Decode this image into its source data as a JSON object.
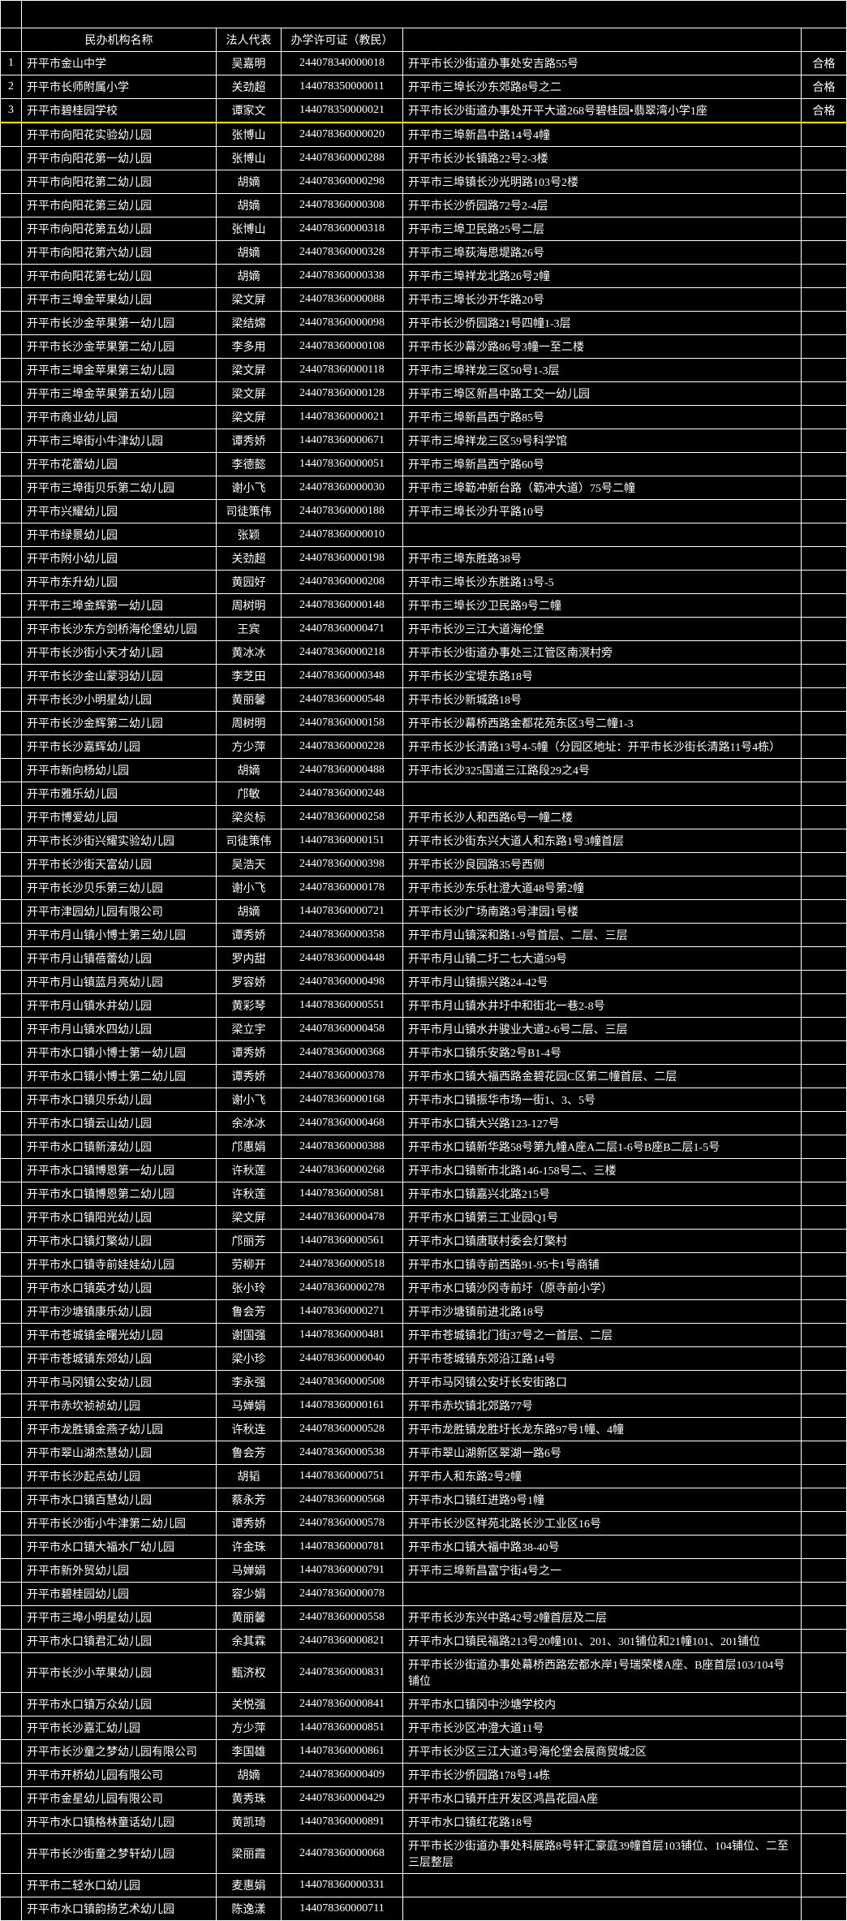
{
  "colors": {
    "bg": "#000000",
    "text": "#ffffff",
    "border": "#ffffff",
    "divider": "#ffff00"
  },
  "headers": {
    "name": "民办机构名称",
    "rep": "法人代表",
    "cert": "办学许可证（教民）"
  },
  "numberedRows": [
    {
      "n": "1",
      "name": "开平市金山中学",
      "rep": "吴嘉明",
      "cert": "244078340000018",
      "addr": "开平市长沙街道办事处安吉路55号",
      "grade": "合格"
    },
    {
      "n": "2",
      "name": "开平市长师附属小学",
      "rep": "关劲超",
      "cert": "144078350000011",
      "addr": "开平市三埠长沙东郊路8号之二",
      "grade": "合格"
    },
    {
      "n": "3",
      "name": "开平市碧桂园学校",
      "rep": "谭家文",
      "cert": "144078350000021",
      "addr": "开平市长沙街道办事处开平大道268号碧桂园•翡翠湾小学1座",
      "grade": "合格"
    }
  ],
  "rows": [
    {
      "name": "开平市向阳花实验幼儿园",
      "rep": "张博山",
      "cert": "244078360000020",
      "addr": "开平市三埠新昌中路14号4幢"
    },
    {
      "name": "开平市向阳花第一幼儿园",
      "rep": "张博山",
      "cert": "244078360000288",
      "addr": "开平市长沙长镇路22号2-3楼"
    },
    {
      "name": "开平市向阳花第二幼儿园",
      "rep": "胡嫡",
      "cert": "244078360000298",
      "addr": "开平市三埠镇长沙光明路103号2楼"
    },
    {
      "name": "开平市向阳花第三幼儿园",
      "rep": "胡嫡",
      "cert": "244078360000308",
      "addr": "开平市长沙侨园路72号2-4层"
    },
    {
      "name": "开平市向阳花第五幼儿园",
      "rep": "张博山",
      "cert": "244078360000318",
      "addr": "开平市三埠卫民路25号二层"
    },
    {
      "name": "开平市向阳花第六幼儿园",
      "rep": "胡嫡",
      "cert": "244078360000328",
      "addr": "开平市三埠荻海思堤路26号"
    },
    {
      "name": "开平市向阳花第七幼儿园",
      "rep": "胡嫡",
      "cert": "244078360000338",
      "addr": "开平市三埠祥龙北路26号2幢"
    },
    {
      "name": "开平市三埠金苹果幼儿园",
      "rep": "梁文屏",
      "cert": "244078360000088",
      "addr": "开平市三埠长沙开华路20号"
    },
    {
      "name": "开平市长沙金苹果第一幼儿园",
      "rep": "梁结嫦",
      "cert": "244078360000098",
      "addr": "开平市长沙侨园路21号四幢1-3层"
    },
    {
      "name": "开平市长沙金苹果第二幼儿园",
      "rep": "李多用",
      "cert": "244078360000108",
      "addr": "开平市长沙幕沙路86号3幢一至二楼"
    },
    {
      "name": "开平市三埠金苹果第三幼儿园",
      "rep": "梁文屏",
      "cert": "244078360000118",
      "addr": "开平市三埠祥龙三区50号1-3层"
    },
    {
      "name": "开平市三埠金苹果第五幼儿园",
      "rep": "梁文屏",
      "cert": "244078360000128",
      "addr": "开平市三埠区新昌中路工交一幼儿园"
    },
    {
      "name": "开平市商业幼儿园",
      "rep": "梁文屏",
      "cert": "144078360000021",
      "addr": "开平市三埠新昌西宁路85号"
    },
    {
      "name": "开平市三埠街小牛津幼儿园",
      "rep": "谭秀娇",
      "cert": "144078360000671",
      "addr": "开平市三埠祥龙三区59号科学馆"
    },
    {
      "name": "开平市花蕾幼儿园",
      "rep": "李德懿",
      "cert": "144078360000051",
      "addr": "开平市三埠新昌西宁路60号"
    },
    {
      "name": "开平市三埠街贝乐第二幼儿园",
      "rep": "谢小飞",
      "cert": "244078360000030",
      "addr": "开平市三埠簕冲新台路（簕冲大道）75号二幢"
    },
    {
      "name": "开平市兴耀幼儿园",
      "rep": "司徒策伟",
      "cert": "244078360000188",
      "addr": "开平市三埠长沙升平路10号"
    },
    {
      "name": "开平市绿景幼儿园",
      "rep": "张颖",
      "cert": "244078360000010",
      "addr": ""
    },
    {
      "name": "开平市附小幼儿园",
      "rep": "关劲超",
      "cert": "244078360000198",
      "addr": "开平市三埠东胜路38号"
    },
    {
      "name": "开平市东升幼儿园",
      "rep": "黄园好",
      "cert": "244078360000208",
      "addr": "开平市三埠长沙东胜路13号-5"
    },
    {
      "name": "开平市三埠金辉第一幼儿园",
      "rep": "周树明",
      "cert": "244078360000148",
      "addr": "开平市三埠长沙卫民路9号二幢"
    },
    {
      "name": "开平市长沙东方剑桥海伦堡幼儿园",
      "rep": "王宾",
      "cert": "244078360000471",
      "addr": "开平市长沙三江大道海伦堡"
    },
    {
      "name": "开平市长沙街小天才幼儿园",
      "rep": "黄冰冰",
      "cert": "244078360000218",
      "addr": "开平市长沙街道办事处三江管区南溟村旁"
    },
    {
      "name": "开平市长沙金山蒙羽幼儿园",
      "rep": "李芝田",
      "cert": "244078360000348",
      "addr": "开平市长沙宝堤东路18号"
    },
    {
      "name": "开平市长沙小明星幼儿园",
      "rep": "黄丽馨",
      "cert": "244078360000548",
      "addr": "开平市长沙新城路18号"
    },
    {
      "name": "开平市长沙金辉第二幼儿园",
      "rep": "周树明",
      "cert": "244078360000158",
      "addr": "开平市长沙幕桥西路金都花苑东区3号二幢1-3"
    },
    {
      "name": "开平市长沙嘉辉幼儿园",
      "rep": "方少萍",
      "cert": "244078360000228",
      "addr": "开平市长沙长清路13号4-5幢（分园区地址：开平市长沙街长清路11号4栋）"
    },
    {
      "name": "开平市新向杨幼儿园",
      "rep": "胡嫡",
      "cert": "244078360000488",
      "addr": "开平市长沙325国道三江路段29之4号"
    },
    {
      "name": "开平市雅乐幼儿园",
      "rep": "邝敏",
      "cert": "244078360000248",
      "addr": ""
    },
    {
      "name": "开平市博爱幼儿园",
      "rep": "梁炎标",
      "cert": "244078360000258",
      "addr": "开平市长沙人和西路6号一幢二楼"
    },
    {
      "name": "开平市长沙街兴耀实验幼儿园",
      "rep": "司徒策伟",
      "cert": "144078360000151",
      "addr": "开平市长沙街东兴大道人和东路1号3幢首层"
    },
    {
      "name": "开平市长沙街天富幼儿园",
      "rep": "吴浩天",
      "cert": "244078360000398",
      "addr": "开平市长沙良园路35号西侧"
    },
    {
      "name": "开平市长沙贝乐第三幼儿园",
      "rep": "谢小飞",
      "cert": "244078360000178",
      "addr": "开平市长沙东乐杜澄大道48号第2幢"
    },
    {
      "name": "开平市津园幼儿园有限公司",
      "rep": "胡嫡",
      "cert": "144078360000721",
      "addr": "开平市长沙广场南路3号津园1号楼"
    },
    {
      "name": "开平市月山镇小博士第三幼儿园",
      "rep": "谭秀娇",
      "cert": "244078360000358",
      "addr": "开平市月山镇深和路1-9号首层、二层、三层"
    },
    {
      "name": "开平市月山镇蓓蕾幼儿园",
      "rep": "罗内甜",
      "cert": "244078360000448",
      "addr": "开平市月山镇二圩二七大道59号"
    },
    {
      "name": "开平市月山镇蓝月亮幼儿园",
      "rep": "罗容娇",
      "cert": "244078360000498",
      "addr": "开平市月山镇振兴路24-42号"
    },
    {
      "name": "开平市月山镇水井幼儿园",
      "rep": "黄彩琴",
      "cert": "144078360000551",
      "addr": "开平市月山镇水井圩中和街北一巷2-8号"
    },
    {
      "name": "开平市月山镇水四幼儿园",
      "rep": "梁立宇",
      "cert": "244078360000458",
      "addr": "开平市月山镇水井骏业大道2-6号二层、三层"
    },
    {
      "name": "开平市水口镇小博士第一幼儿园",
      "rep": "谭秀娇",
      "cert": "244078360000368",
      "addr": "开平市水口镇乐安路2号B1-4号"
    },
    {
      "name": "开平市水口镇小博士第二幼儿园",
      "rep": "谭秀娇",
      "cert": "244078360000378",
      "addr": "开平市水口镇大福西路金碧花园C区第二幢首层、二层"
    },
    {
      "name": "开平市水口镇贝乐幼儿园",
      "rep": "谢小飞",
      "cert": "244078360000168",
      "addr": "开平市水口镇振华市场一街1、3、5号"
    },
    {
      "name": "开平市水口镇云山幼儿园",
      "rep": "余冰冰",
      "cert": "244078360000468",
      "addr": "开平市水口镇大兴路123-127号"
    },
    {
      "name": "开平市水口镇新濠幼儿园",
      "rep": "邝惠娟",
      "cert": "244078360000388",
      "addr": "开平市水口镇新华路58号第九幢A座A二层1-6号B座B二层1-5号"
    },
    {
      "name": "开平市水口镇博恩第一幼儿园",
      "rep": "许秋莲",
      "cert": "244078360000268",
      "addr": "开平市水口镇新市北路146-158号二、三楼"
    },
    {
      "name": "开平市水口镇博恩第二幼儿园",
      "rep": "许秋莲",
      "cert": "144078360000581",
      "addr": "开平市水口镇嘉兴北路215号"
    },
    {
      "name": "开平市水口镇阳光幼儿园",
      "rep": "梁文屏",
      "cert": "244078360000478",
      "addr": "开平市水口镇第三工业园Q1号"
    },
    {
      "name": "开平市水口镇灯檠幼儿园",
      "rep": "邝丽芳",
      "cert": "144078360000561",
      "addr": "开平市水口镇唐联村委会灯檠村"
    },
    {
      "name": "开平市水口镇寺前娃娃幼儿园",
      "rep": "劳柳开",
      "cert": "244078360000518",
      "addr": "开平市水口镇寺前西路91-95卡1号商铺"
    },
    {
      "name": "开平市水口镇英才幼儿园",
      "rep": "张小玲",
      "cert": "244078360000278",
      "addr": "开平市水口镇沙冈寺前圩（原寺前小学）"
    },
    {
      "name": "开平市沙塘镇康乐幼儿园",
      "rep": "鲁会芳",
      "cert": "144078360000271",
      "addr": "开平市沙塘镇前进北路18号"
    },
    {
      "name": "开平市苍城镇金曙光幼儿园",
      "rep": "谢国强",
      "cert": "144078360000481",
      "addr": "开平市苍城镇北门街37号之一首层、二层"
    },
    {
      "name": "开平市苍城镇东郊幼儿园",
      "rep": "梁小珍",
      "cert": "244078360000040",
      "addr": "开平市苍城镇东郊沿江路14号"
    },
    {
      "name": "开平市马冈镇公安幼儿园",
      "rep": "李永强",
      "cert": "244078360000508",
      "addr": "开平市马冈镇公安圩长安街路口"
    },
    {
      "name": "开平市赤坎祯祯幼儿园",
      "rep": "马婵娟",
      "cert": "144078360000161",
      "addr": "开平市赤坎镇北郊路77号"
    },
    {
      "name": "开平市龙胜镇金燕子幼儿园",
      "rep": "许秋连",
      "cert": "244078360000528",
      "addr": "开平市龙胜镇龙胜圩长龙东路97号1幢、4幢"
    },
    {
      "name": "开平市翠山湖杰慧幼儿园",
      "rep": "鲁会芳",
      "cert": "244078360000538",
      "addr": "开平市翠山湖新区翠湖一路6号"
    },
    {
      "name": "开平市长沙起点幼儿园",
      "rep": "胡韬",
      "cert": "144078360000751",
      "addr": "开平市人和东路2号2幢"
    },
    {
      "name": "开平市水口镇百慧幼儿园",
      "rep": "蔡永芳",
      "cert": "244078360000568",
      "addr": "开平市水口镇红进路9号1幢"
    },
    {
      "name": "开平市长沙街小牛津第二幼儿园",
      "rep": "谭秀娇",
      "cert": "244078360000578",
      "addr": "开平市长沙区祥苑北路长沙工业区16号"
    },
    {
      "name": "开平市水口镇大福水厂幼儿园",
      "rep": "许金珠",
      "cert": "144078360000781",
      "addr": "开平市水口镇大福中路38-40号"
    },
    {
      "name": "开平市新外贸幼儿园",
      "rep": "马婵娟",
      "cert": "144078360000791",
      "addr": "开平市三埠新昌富宁街4号之一"
    },
    {
      "name": "开平市碧桂园幼儿园",
      "rep": "容少娟",
      "cert": "244078360000078",
      "addr": ""
    },
    {
      "name": "开平市三埠小明星幼儿园",
      "rep": "黄丽馨",
      "cert": "244078360000558",
      "addr": "开平市长沙东兴中路42号2幢首层及二层"
    },
    {
      "name": "开平市水口镇君汇幼儿园",
      "rep": "余其霖",
      "cert": "244078360000821",
      "addr": "开平市水口镇民福路213号20幢101、201、301铺位和21幢101、201铺位"
    },
    {
      "name": "开平市长沙小苹果幼儿园",
      "rep": "甄济权",
      "cert": "244078360000831",
      "addr": "开平市长沙街道办事处幕桥西路宏都水岸1号瑞荣楼A座、B座首层103/104号铺位"
    },
    {
      "name": "开平市水口镇万众幼儿园",
      "rep": "关悦强",
      "cert": "244078360000841",
      "addr": "开平市水口镇冈中沙塘学校内"
    },
    {
      "name": "开平市长沙嘉汇幼儿园",
      "rep": "方少萍",
      "cert": "144078360000851",
      "addr": "开平市长沙区冲澄大道11号"
    },
    {
      "name": "开平市长沙童之梦幼儿园有限公司",
      "rep": "李国雄",
      "cert": "144078360000861",
      "addr": "开平市长沙区三江大道3号海伦堡会展商贸城2区"
    },
    {
      "name": "开平市开桥幼儿园有限公司",
      "rep": "胡嫡",
      "cert": "244078360000409",
      "addr": "开平市长沙侨园路178号14栋"
    },
    {
      "name": "开平市金星幼儿园有限公司",
      "rep": "黄秀珠",
      "cert": "244078360000429",
      "addr": "开平市水口镇开庄开发区鸿昌花园A座"
    },
    {
      "name": "开平市水口镇格林童话幼儿园",
      "rep": "黄凯琦",
      "cert": "144078360000891",
      "addr": "开平市水口镇红花路18号"
    },
    {
      "name": "开平市长沙街童之梦轩幼儿园",
      "rep": "梁丽霞",
      "cert": "244078360000068",
      "addr": "开平市长沙街道办事处科展路8号轩汇豪庭39幢首层103铺位、104铺位、二至三层整层"
    },
    {
      "name": "开平市二轻水口幼儿园",
      "rep": "麦惠娟",
      "cert": "144078360000331",
      "addr": ""
    },
    {
      "name": "开平市水口镇韵扬艺术幼儿园",
      "rep": "陈逸漾",
      "cert": "144078360000711",
      "addr": ""
    }
  ]
}
